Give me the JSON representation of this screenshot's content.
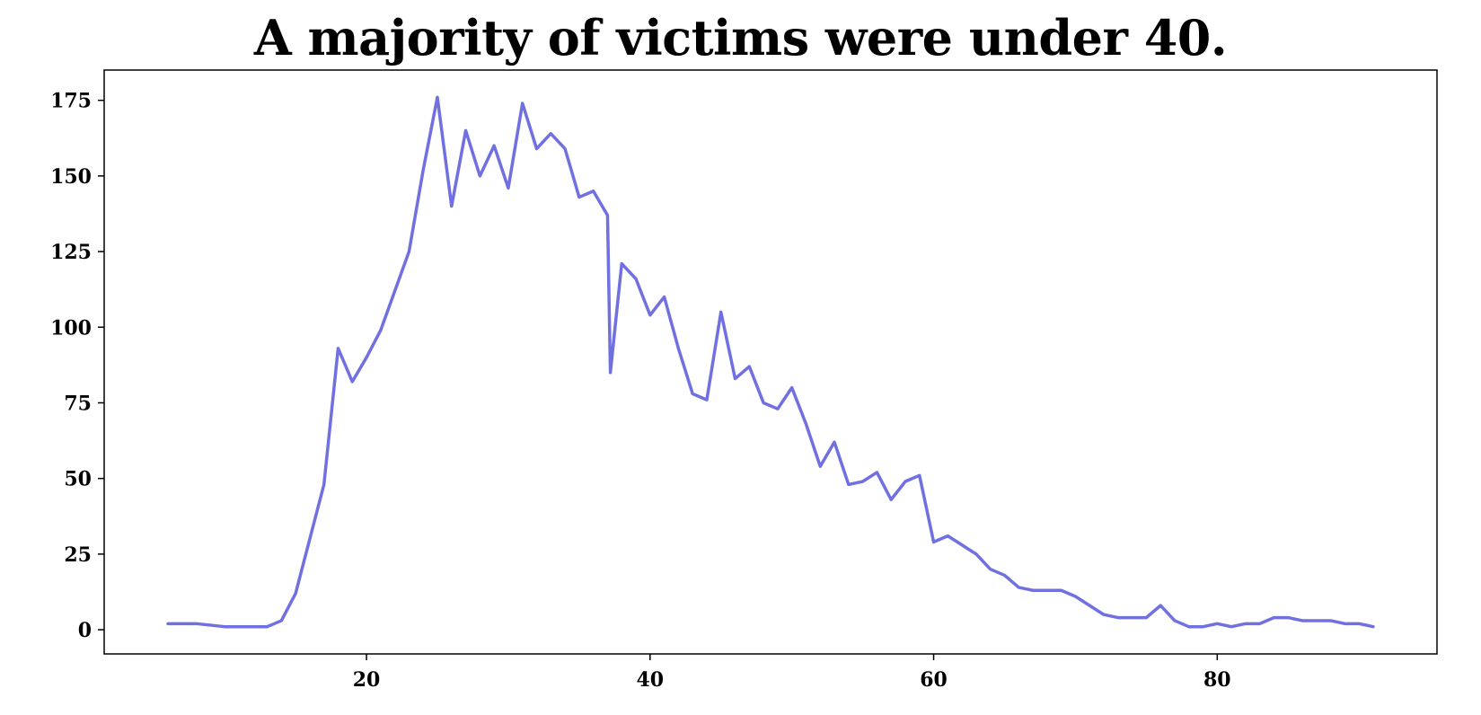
{
  "chart_data": {
    "type": "line",
    "title": "A majority of victims were under 40.",
    "xlabel": "",
    "ylabel": "",
    "xlim": [
      1.5,
      95.5
    ],
    "ylim": [
      -8,
      185
    ],
    "x_ticks": [
      20,
      40,
      60,
      80
    ],
    "x_tick_labels": [
      "20",
      "40",
      "60",
      "80"
    ],
    "y_ticks": [
      0,
      25,
      50,
      75,
      100,
      125,
      150,
      175
    ],
    "y_tick_labels": [
      "0",
      "25",
      "50",
      "75",
      "100",
      "125",
      "150",
      "175"
    ],
    "grid": false,
    "series": [
      {
        "color": "#7070e0",
        "points": [
          [
            6,
            2
          ],
          [
            8,
            2
          ],
          [
            10,
            1
          ],
          [
            12,
            1
          ],
          [
            13,
            1
          ],
          [
            14,
            3
          ],
          [
            15,
            12
          ],
          [
            16,
            30
          ],
          [
            17,
            48
          ],
          [
            18,
            93
          ],
          [
            19,
            82
          ],
          [
            20,
            90
          ],
          [
            21,
            99
          ],
          [
            22,
            112
          ],
          [
            23,
            125
          ],
          [
            24,
            152
          ],
          [
            25,
            176
          ],
          [
            26,
            140
          ],
          [
            27,
            165
          ],
          [
            28,
            150
          ],
          [
            29,
            160
          ],
          [
            30,
            146
          ],
          [
            31,
            174
          ],
          [
            32,
            159
          ],
          [
            33,
            164
          ],
          [
            34,
            159
          ],
          [
            35,
            143
          ],
          [
            36,
            145
          ],
          [
            37,
            137
          ],
          [
            37.2,
            85
          ],
          [
            38,
            121
          ],
          [
            39,
            116
          ],
          [
            40,
            104
          ],
          [
            41,
            110
          ],
          [
            42,
            93
          ],
          [
            43,
            78
          ],
          [
            44,
            76
          ],
          [
            45,
            105
          ],
          [
            46,
            83
          ],
          [
            47,
            87
          ],
          [
            48,
            75
          ],
          [
            49,
            73
          ],
          [
            50,
            80
          ],
          [
            51,
            68
          ],
          [
            52,
            54
          ],
          [
            53,
            62
          ],
          [
            54,
            48
          ],
          [
            55,
            49
          ],
          [
            56,
            52
          ],
          [
            57,
            43
          ],
          [
            58,
            49
          ],
          [
            59,
            51
          ],
          [
            60,
            29
          ],
          [
            61,
            31
          ],
          [
            62,
            28
          ],
          [
            63,
            25
          ],
          [
            64,
            20
          ],
          [
            65,
            18
          ],
          [
            66,
            14
          ],
          [
            67,
            13
          ],
          [
            68,
            13
          ],
          [
            69,
            13
          ],
          [
            70,
            11
          ],
          [
            71,
            8
          ],
          [
            72,
            5
          ],
          [
            73,
            4
          ],
          [
            74,
            4
          ],
          [
            75,
            4
          ],
          [
            76,
            8
          ],
          [
            77,
            3
          ],
          [
            78,
            1
          ],
          [
            79,
            1
          ],
          [
            80,
            2
          ],
          [
            81,
            1
          ],
          [
            82,
            2
          ],
          [
            83,
            2
          ],
          [
            84,
            4
          ],
          [
            85,
            4
          ],
          [
            86,
            3
          ],
          [
            87,
            3
          ],
          [
            88,
            3
          ],
          [
            89,
            2
          ],
          [
            90,
            2
          ],
          [
            91,
            1
          ]
        ]
      }
    ]
  }
}
